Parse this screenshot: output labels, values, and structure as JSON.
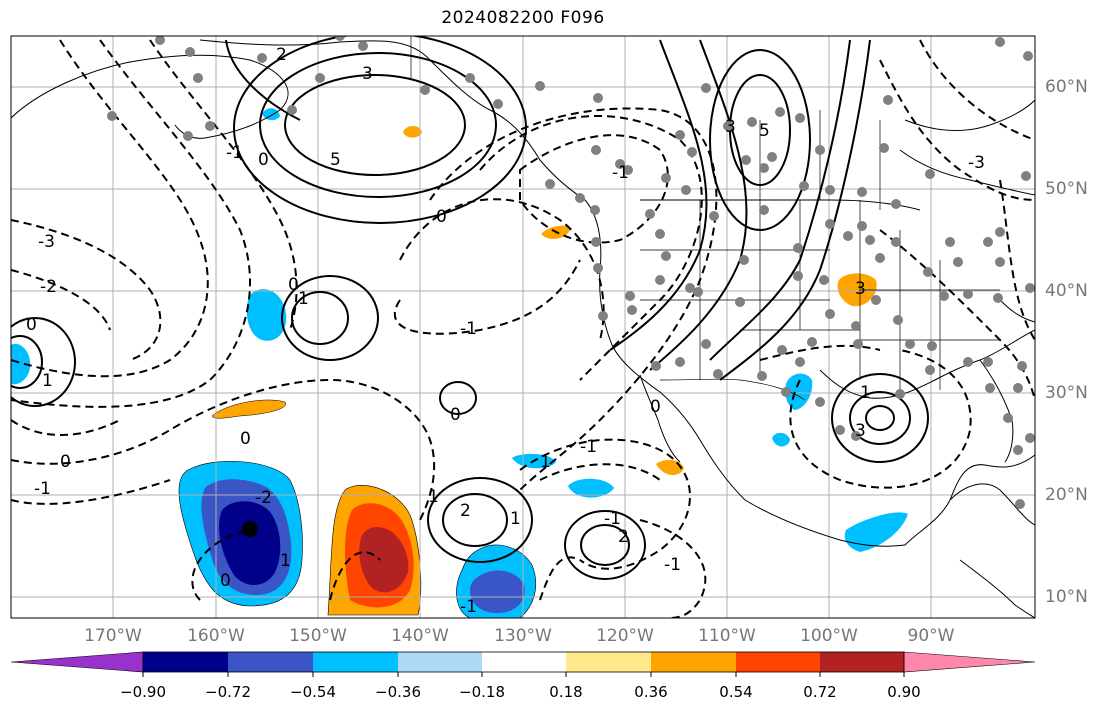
{
  "title": "2024082200 F096",
  "map": {
    "longitude_labels": [
      "170°W",
      "160°W",
      "150°W",
      "140°W",
      "130°W",
      "120°W",
      "110°W",
      "100°W",
      "90°W"
    ],
    "latitude_labels": [
      "60°N",
      "50°N",
      "40°N",
      "30°N",
      "20°N",
      "10°N"
    ],
    "contour_labels": [
      "2",
      "3",
      "5",
      "-3",
      "0",
      "-1",
      "-2",
      "0",
      "1",
      "-1",
      "0",
      "3",
      "5",
      "3",
      "-3",
      "0",
      "-1",
      "1",
      "0",
      "0",
      "-1",
      "0",
      "1",
      "-1",
      "1",
      "3",
      "-2",
      "0",
      "1",
      "2",
      "1",
      "-1",
      "-1",
      "2",
      "1",
      "0",
      "-1"
    ],
    "colors": {
      "grid": "#b0b0b0",
      "coast": "#000000",
      "station_dot": "#808080"
    }
  },
  "colorbar": {
    "tick_labels": [
      "−0.90",
      "−0.72",
      "−0.54",
      "−0.36",
      "−0.18",
      "0.18",
      "0.36",
      "0.54",
      "0.72",
      "0.90"
    ],
    "colors": [
      "#9932cc",
      "#00008b",
      "#3a55c6",
      "#00bfff",
      "#add8f8",
      "#ffffff",
      "#ffe98c",
      "#ffa500",
      "#ff4500",
      "#b22222",
      "#ff88aa"
    ]
  }
}
